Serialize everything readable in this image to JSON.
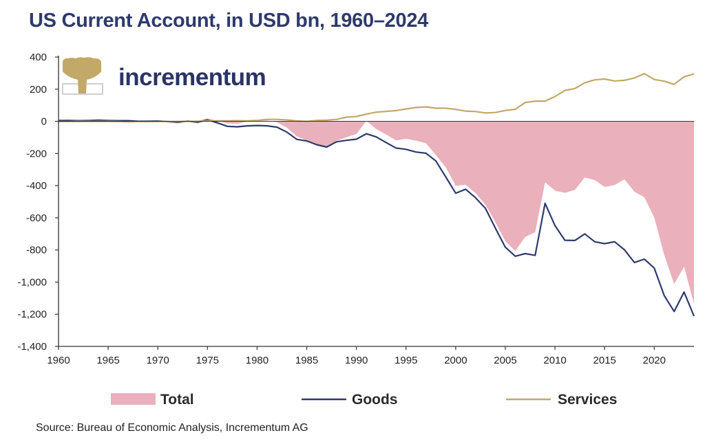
{
  "title": "US Current Account, in USD bn, 1960–2024",
  "brand": {
    "name": "incrementum",
    "logo_icon": "tree-logo-icon",
    "logo_color": "#c2a869"
  },
  "source": "Source: Bureau of Economic Analysis, Incrementum AG",
  "chart_data": {
    "type": "line",
    "title": "US Current Account, in USD bn, 1960–2024",
    "xlabel": "",
    "ylabel": "",
    "xlim": [
      1960,
      2024
    ],
    "ylim": [
      -1400,
      400
    ],
    "x_ticks": [
      1960,
      1965,
      1970,
      1975,
      1980,
      1985,
      1990,
      1995,
      2000,
      2005,
      2010,
      2015,
      2020
    ],
    "x_tick_labels": [
      "1960",
      "1965",
      "1970",
      "1975",
      "1980",
      "1985",
      "1990",
      "1995",
      "2000",
      "2005",
      "2010",
      "2015",
      "2020"
    ],
    "y_ticks": [
      400,
      200,
      0,
      -200,
      -400,
      -600,
      -800,
      -1000,
      -1200,
      -1400
    ],
    "y_tick_labels": [
      "400",
      "200",
      "0",
      "-200",
      "-400",
      "-600",
      "-800",
      "-1,000",
      "-1,200",
      "-1,400"
    ],
    "grid": false,
    "legend_position": "bottom",
    "x": [
      1960,
      1961,
      1962,
      1963,
      1964,
      1965,
      1966,
      1967,
      1968,
      1969,
      1970,
      1971,
      1972,
      1973,
      1974,
      1975,
      1976,
      1977,
      1978,
      1979,
      1980,
      1981,
      1982,
      1983,
      1984,
      1985,
      1986,
      1987,
      1988,
      1989,
      1990,
      1991,
      1992,
      1993,
      1994,
      1995,
      1996,
      1997,
      1998,
      1999,
      2000,
      2001,
      2002,
      2003,
      2004,
      2005,
      2006,
      2007,
      2008,
      2009,
      2010,
      2011,
      2012,
      2013,
      2014,
      2015,
      2016,
      2017,
      2018,
      2019,
      2020,
      2021,
      2022,
      2023,
      2024
    ],
    "series": [
      {
        "name": "Total",
        "style": "area",
        "color": "#eab0bb",
        "values": [
          3,
          4,
          4,
          5,
          7,
          5,
          3,
          2,
          1,
          0,
          2,
          -1,
          -6,
          7,
          2,
          18,
          4,
          -14,
          -15,
          -1,
          2,
          5,
          -6,
          -39,
          -94,
          -118,
          -147,
          -161,
          -121,
          -99,
          -79,
          3,
          -48,
          -82,
          -118,
          -109,
          -120,
          -136,
          -209,
          -286,
          -401,
          -394,
          -446,
          -518,
          -628,
          -746,
          -806,
          -719,
          -690,
          -379,
          -431,
          -445,
          -426,
          -349,
          -365,
          -408,
          -396,
          -361,
          -438,
          -472,
          -597,
          -831,
          -1012,
          -905,
          -1133
        ]
      },
      {
        "name": "Goods",
        "style": "line",
        "color": "#2e3a6b",
        "values": [
          5,
          6,
          4,
          5,
          7,
          5,
          4,
          4,
          1,
          1,
          2,
          -2,
          -6,
          1,
          -6,
          9,
          -9,
          -31,
          -34,
          -28,
          -26,
          -28,
          -36,
          -67,
          -112,
          -122,
          -145,
          -160,
          -127,
          -118,
          -111,
          -77,
          -97,
          -132,
          -166,
          -174,
          -191,
          -198,
          -246,
          -346,
          -447,
          -422,
          -475,
          -541,
          -665,
          -783,
          -839,
          -823,
          -834,
          -510,
          -649,
          -740,
          -741,
          -700,
          -749,
          -761,
          -749,
          -799,
          -878,
          -857,
          -913,
          -1083,
          -1183,
          -1062,
          -1212
        ]
      },
      {
        "name": "Services",
        "style": "line",
        "color": "#c2a869",
        "values": [
          -1,
          -1,
          0,
          0,
          0,
          0,
          -1,
          -3,
          -1,
          -2,
          -1,
          -1,
          -1,
          0,
          0,
          3,
          3,
          3,
          4,
          3,
          6,
          12,
          12,
          9,
          3,
          0,
          6,
          7,
          12,
          26,
          30,
          45,
          57,
          62,
          67,
          77,
          86,
          90,
          82,
          82,
          74,
          64,
          61,
          52,
          55,
          68,
          75,
          117,
          126,
          126,
          154,
          192,
          204,
          240,
          258,
          263,
          251,
          255,
          270,
          297,
          260,
          250,
          230,
          277,
          295
        ]
      }
    ]
  }
}
